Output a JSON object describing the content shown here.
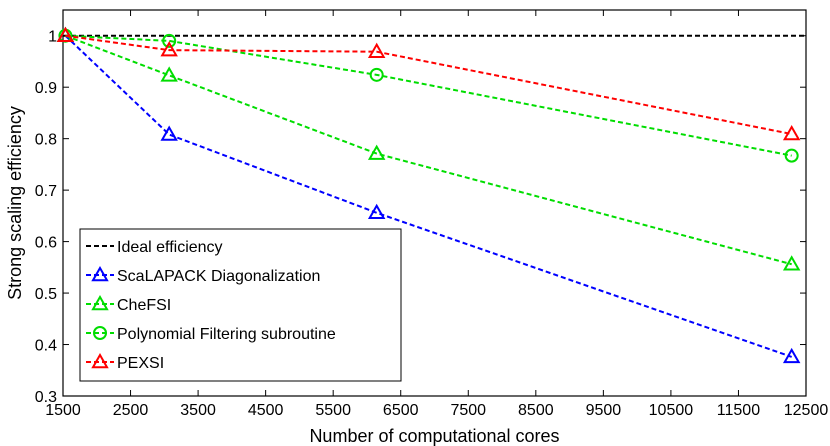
{
  "chart_data": {
    "type": "line",
    "title": "",
    "xlabel": "Number of computational cores",
    "ylabel": "Strong scaling efficiency",
    "xlim": [
      1500,
      12500
    ],
    "ylim": [
      0.3,
      1.05
    ],
    "xticks": [
      1500,
      2500,
      3500,
      4500,
      5500,
      6500,
      7500,
      8500,
      9500,
      10500,
      11500,
      12500
    ],
    "yticks": [
      0.3,
      0.4,
      0.5,
      0.6,
      0.7,
      0.8,
      0.9,
      1
    ],
    "ytick_labels": [
      "0.3",
      "0.4",
      "0.5",
      "0.6",
      "0.7",
      "0.8",
      "0.9",
      "1"
    ],
    "grid": false,
    "legend_position": "bottom-left",
    "series": [
      {
        "name": "Ideal efficiency",
        "color": "#000000",
        "marker": "none",
        "x": [
          1500,
          12500
        ],
        "y": [
          1,
          1
        ]
      },
      {
        "name": "ScaLAPACK Diagonalization",
        "color": "#0000ff",
        "marker": "triangle",
        "x": [
          1536,
          3072,
          6144,
          12288
        ],
        "y": [
          1.0,
          0.808,
          0.656,
          0.376
        ]
      },
      {
        "name": "CheFSI",
        "color": "#00dd00",
        "marker": "triangle",
        "x": [
          1536,
          3072,
          6144,
          12288
        ],
        "y": [
          1.0,
          0.923,
          0.771,
          0.556
        ]
      },
      {
        "name": "Polynomial Filtering subroutine",
        "color": "#00dd00",
        "marker": "circle",
        "x": [
          1536,
          3072,
          6144,
          12288
        ],
        "y": [
          1.0,
          0.99,
          0.924,
          0.767
        ]
      },
      {
        "name": "PEXSI",
        "color": "#ff0000",
        "marker": "triangle",
        "x": [
          1536,
          3072,
          6144,
          12288
        ],
        "y": [
          1.0,
          0.972,
          0.969,
          0.809
        ]
      }
    ]
  }
}
